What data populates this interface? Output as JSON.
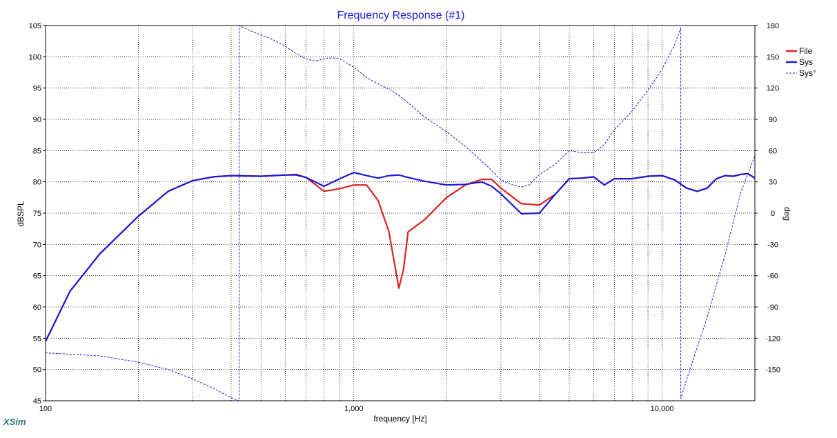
{
  "app": {
    "brand": "XSim"
  },
  "chart_data": {
    "type": "line",
    "title": "Frequency Response (#1)",
    "xlabel": "frequency [Hz]",
    "ylabel": "dBSPL",
    "y2label": "deg",
    "xscale": "log",
    "xlim": [
      100,
      20000
    ],
    "ylim": [
      45,
      105
    ],
    "y2lim": [
      -180,
      180
    ],
    "grid": true,
    "legend_position": "top-right",
    "x_tick_labels": [
      {
        "value": 100,
        "label": "100"
      },
      {
        "value": 1000,
        "label": "1,000"
      },
      {
        "value": 10000,
        "label": "10,000"
      }
    ],
    "x_gridlines": [
      200,
      300,
      400,
      500,
      600,
      700,
      800,
      900,
      2000,
      3000,
      4000,
      5000,
      6000,
      7000,
      8000,
      9000
    ],
    "y_ticks": [
      45,
      50,
      55,
      60,
      65,
      70,
      75,
      80,
      85,
      90,
      95,
      100,
      105
    ],
    "y2_ticks": [
      -150,
      -120,
      -90,
      -60,
      -30,
      0,
      30,
      60,
      90,
      120,
      150,
      180
    ],
    "series": [
      {
        "name": "File",
        "axis": "left",
        "color": "#e02020",
        "style": "solid",
        "x": [
          100,
          120,
          150,
          200,
          250,
          300,
          350,
          400,
          500,
          600,
          650,
          700,
          800,
          900,
          1000,
          1100,
          1200,
          1300,
          1400,
          1450,
          1500,
          1700,
          2000,
          2300,
          2600,
          2800,
          3000,
          3500,
          4000,
          4500,
          5000,
          5500,
          6000,
          6500,
          7000,
          8000,
          9000,
          10000,
          11000,
          12000,
          13000,
          14000,
          15000,
          16000,
          17000,
          18000,
          19000,
          20000
        ],
        "y": [
          54.5,
          62.5,
          68.5,
          74.5,
          78.5,
          80.2,
          80.8,
          81,
          80.9,
          81.1,
          81.2,
          80.7,
          78.5,
          78.9,
          79.5,
          79.5,
          77,
          72,
          63,
          66,
          72,
          74,
          77.5,
          79.5,
          80.4,
          80.4,
          79,
          76.5,
          76.3,
          78,
          80.5,
          80.6,
          80.8,
          79.5,
          80.5,
          80.5,
          80.9,
          81,
          80.3,
          79,
          78.5,
          79,
          80.5,
          81,
          80.9,
          81.2,
          81.3,
          80.6
        ]
      },
      {
        "name": "Sys",
        "axis": "left",
        "color": "#1a1ad6",
        "style": "solid",
        "x": [
          100,
          120,
          150,
          200,
          250,
          300,
          350,
          400,
          500,
          600,
          650,
          700,
          800,
          900,
          1000,
          1100,
          1200,
          1300,
          1400,
          1500,
          1700,
          2000,
          2300,
          2600,
          2800,
          3000,
          3500,
          4000,
          4500,
          5000,
          5500,
          6000,
          6500,
          7000,
          8000,
          9000,
          10000,
          11000,
          12000,
          13000,
          14000,
          15000,
          16000,
          17000,
          18000,
          19000,
          20000
        ],
        "y": [
          54.5,
          62.5,
          68.5,
          74.5,
          78.5,
          80.2,
          80.8,
          81,
          80.9,
          81.1,
          81.1,
          80.7,
          79.3,
          80.5,
          81.5,
          81,
          80.6,
          81,
          81.1,
          80.7,
          80.1,
          79.5,
          79.6,
          80,
          79.3,
          78.1,
          74.9,
          75,
          78,
          80.5,
          80.6,
          80.8,
          79.5,
          80.5,
          80.5,
          80.9,
          81,
          80.3,
          79,
          78.5,
          79,
          80.5,
          81,
          80.9,
          81.2,
          81.3,
          80.6
        ]
      },
      {
        "name": "Sys°",
        "axis": "right",
        "color": "#1a1ad6",
        "style": "dashed",
        "x": [
          100,
          150,
          200,
          250,
          300,
          350,
          400,
          425,
          425,
          470,
          500,
          550,
          600,
          650,
          700,
          750,
          800,
          850,
          900,
          1000,
          1100,
          1200,
          1300,
          1400,
          1500,
          1700,
          2000,
          2300,
          2600,
          2800,
          3000,
          3200,
          3500,
          3700,
          4000,
          4500,
          5000,
          5500,
          6000,
          6500,
          7000,
          8000,
          9000,
          10000,
          11000,
          11500,
          11500,
          12000,
          14000,
          16000,
          18000,
          20000
        ],
        "y": [
          -134,
          -137,
          -143,
          -150,
          -159,
          -168,
          -177,
          -180,
          180,
          174,
          171,
          166,
          160,
          153,
          148,
          146,
          148,
          149,
          148,
          140,
          130,
          124,
          119,
          113,
          106,
          92,
          78,
          64,
          50,
          41,
          32,
          28,
          25,
          27,
          37,
          47,
          60,
          58,
          58,
          66,
          80,
          98,
          118,
          138,
          162,
          178,
          -178,
          -160,
          -100,
          -40,
          20,
          55
        ]
      }
    ]
  }
}
